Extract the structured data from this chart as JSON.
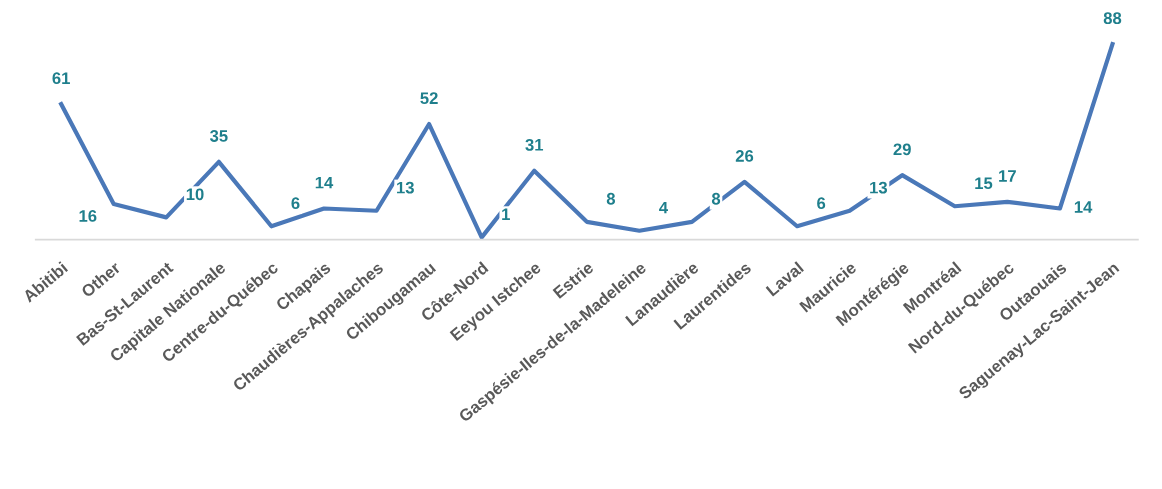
{
  "chart_data": {
    "type": "line",
    "categories": [
      "Abitibi",
      "Other",
      "Bas-St-Laurent",
      "Capitale Nationale",
      "Centre-du-Québec",
      "Chapais",
      "Chaudières-Appalaches",
      "Chibougamau",
      "Côte-Nord",
      "Eeyou Istchee",
      "Estrie",
      "Gaspésie-Iles-de-la-Madeleine",
      "Lanaudière",
      "Laurentides",
      "Laval",
      "Mauricie",
      "Montérégie",
      "Montréal",
      "Nord-du-Québec",
      "Outaouais",
      "Saguenay-Lac-Saint-Jean"
    ],
    "series": [
      {
        "color": "#4a78b8",
        "values": [
          61,
          16,
          10,
          35,
          6,
          14,
          13,
          52,
          1,
          31,
          8,
          4,
          8,
          26,
          6,
          13,
          29,
          15,
          17,
          14,
          88
        ]
      }
    ],
    "data_labels": true,
    "grid": false,
    "legend": false,
    "marker": "none",
    "line_style": "solid"
  }
}
